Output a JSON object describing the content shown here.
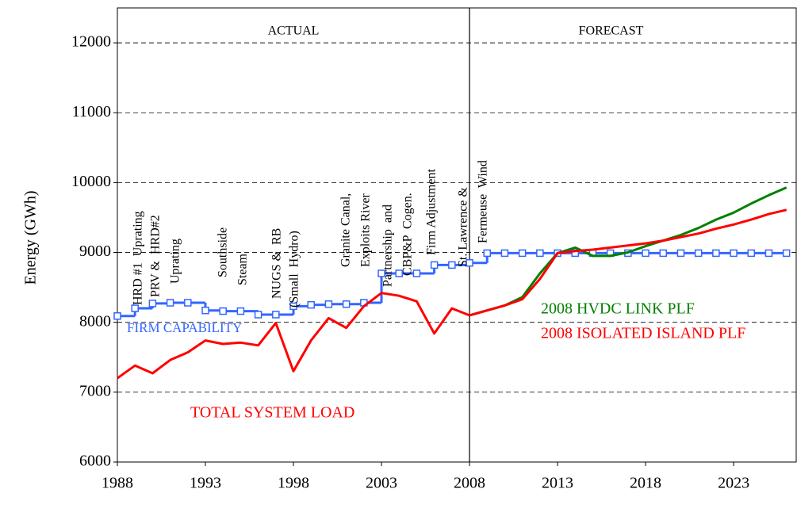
{
  "chart_data": {
    "type": "line",
    "ylabel": "Energy (GWh)",
    "x": [
      1988,
      1989,
      1990,
      1991,
      1992,
      1993,
      1994,
      1995,
      1996,
      1997,
      1998,
      1999,
      2000,
      2001,
      2002,
      2003,
      2004,
      2005,
      2006,
      2007,
      2008,
      2009,
      2010,
      2011,
      2012,
      2013,
      2014,
      2015,
      2016,
      2017,
      2018,
      2019,
      2020,
      2021,
      2022,
      2023,
      2024,
      2025,
      2026
    ],
    "xlim": [
      1988,
      2026.6
    ],
    "xticks": [
      1988,
      1993,
      1998,
      2003,
      2008,
      2013,
      2018,
      2023
    ],
    "ylim": [
      6000,
      12500
    ],
    "yticks": [
      6000,
      7000,
      8000,
      9000,
      10000,
      11000,
      12000
    ],
    "grid": true,
    "divider": 2008,
    "regions": [
      "ACTUAL",
      "FORECAST"
    ],
    "series": [
      {
        "name": "FIRM CAPABILITY",
        "color": "#3366ff",
        "step": true,
        "values": [
          8090,
          8200,
          8270,
          8280,
          8280,
          8170,
          8160,
          8160,
          8110,
          8110,
          8230,
          8250,
          8260,
          8260,
          8280,
          8700,
          8700,
          8700,
          8820,
          8820,
          8850,
          8990,
          8990,
          8990,
          8990,
          8990,
          8990,
          8990,
          8990,
          8990,
          8990,
          8990,
          8990,
          8990,
          8990,
          8990,
          8990,
          8990,
          8990
        ]
      },
      {
        "name": "TOTAL SYSTEM LOAD",
        "color": "#ff0000",
        "values": [
          7200,
          7380,
          7270,
          7460,
          7570,
          7740,
          7690,
          7710,
          7670,
          7990,
          7300,
          7740,
          8060,
          7920,
          8230,
          8420,
          8380,
          8300,
          7840,
          8200,
          8100,
          null,
          null,
          null,
          null,
          null,
          null,
          null,
          null,
          null,
          null,
          null,
          null,
          null,
          null,
          null,
          null,
          null,
          null
        ]
      },
      {
        "name": "2008 HVDC LINK PLF",
        "color": "#008000",
        "values": [
          null,
          null,
          null,
          null,
          null,
          null,
          null,
          null,
          null,
          null,
          null,
          null,
          null,
          null,
          null,
          null,
          null,
          null,
          null,
          null,
          8100,
          8170,
          8240,
          8360,
          8700,
          8990,
          9070,
          8950,
          8950,
          9000,
          9090,
          9170,
          9250,
          9350,
          9470,
          9570,
          9700,
          9820,
          9930
        ]
      },
      {
        "name": "2008 ISOLATED ISLAND PLF",
        "color": "#ff0000",
        "values": [
          null,
          null,
          null,
          null,
          null,
          null,
          null,
          null,
          null,
          null,
          null,
          null,
          null,
          null,
          null,
          null,
          null,
          null,
          null,
          null,
          8100,
          8170,
          8240,
          8330,
          8620,
          8990,
          9020,
          9040,
          9070,
          9100,
          9130,
          9170,
          9220,
          9270,
          9340,
          9400,
          9470,
          9550,
          9610
        ]
      }
    ],
    "annotations": [
      "HRD #1  Uprating",
      "PRV &  HRD#2",
      "Uprating",
      "Southside",
      "Steam",
      "NUGS &  RB",
      "(Small  Hydro)",
      "Granite Canal,",
      "Exploits River",
      "Partnership  and",
      "CBP&P  Cogen.",
      "Firm Adjustment",
      "St. Lawrence &",
      "Fermeuse  Wind"
    ]
  }
}
